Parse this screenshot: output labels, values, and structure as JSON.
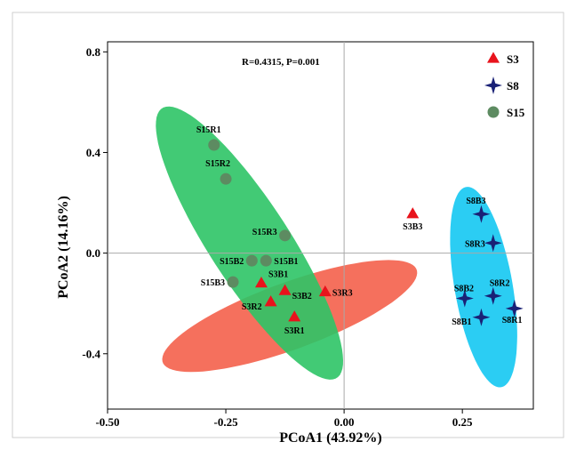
{
  "chart_data": {
    "type": "scatter",
    "title": "",
    "xlabel": "PCoA1 (43.92%)",
    "ylabel": "PCoA2 (14.16%)",
    "xlim": [
      -0.5,
      0.4
    ],
    "ylim": [
      -0.62,
      0.84
    ],
    "xticks": [
      -0.5,
      -0.25,
      0.0,
      0.25
    ],
    "xtick_labels": [
      "-0.50",
      "-0.25",
      "0.00",
      "0.25"
    ],
    "yticks": [
      -0.4,
      0.0,
      0.4,
      0.8
    ],
    "ytick_labels": [
      "-0.4",
      "0.0",
      "0.4",
      "0.8"
    ],
    "reference_lines": {
      "x": 0.0,
      "y": 0.0
    },
    "grid": false,
    "legend_position": "top-right",
    "annotation": "R=0.4315, P=0.001",
    "series": [
      {
        "name": "S3",
        "marker": "triangle",
        "color": "#e8131c",
        "ellipse_color": "#f4614b",
        "ellipse": {
          "center": [
            -0.115,
            -0.25
          ],
          "semi_major": 0.33,
          "semi_minor": 0.115,
          "angle_deg": 38
        },
        "points": [
          {
            "label": "S3B3",
            "x": 0.145,
            "y": 0.155
          },
          {
            "label": "S3B1",
            "x": -0.175,
            "y": -0.12
          },
          {
            "label": "S3B2",
            "x": -0.125,
            "y": -0.15
          },
          {
            "label": "S3R3",
            "x": -0.04,
            "y": -0.155
          },
          {
            "label": "S3R2",
            "x": -0.155,
            "y": -0.195
          },
          {
            "label": "S3R1",
            "x": -0.105,
            "y": -0.255
          }
        ]
      },
      {
        "name": "S8",
        "marker": "star4",
        "color": "#1a2176",
        "ellipse_color": "#14c8f2",
        "ellipse": {
          "center": [
            0.295,
            -0.135
          ],
          "semi_major": 0.4,
          "semi_minor": 0.062,
          "angle_deg": 95
        },
        "points": [
          {
            "label": "S8B3",
            "x": 0.29,
            "y": 0.155
          },
          {
            "label": "S8R3",
            "x": 0.315,
            "y": 0.04
          },
          {
            "label": "S8R2",
            "x": 0.315,
            "y": -0.17
          },
          {
            "label": "S8B2",
            "x": 0.255,
            "y": -0.18
          },
          {
            "label": "S8B1",
            "x": 0.29,
            "y": -0.255
          },
          {
            "label": "S8R1",
            "x": 0.36,
            "y": -0.22
          }
        ]
      },
      {
        "name": "S15",
        "marker": "circle",
        "color": "#5d8b61",
        "ellipse_color": "#2dc466",
        "ellipse": {
          "center": [
            -0.2,
            0.04
          ],
          "semi_major": 0.57,
          "semi_minor": 0.095,
          "angle_deg": 108
        },
        "points": [
          {
            "label": "S15R1",
            "x": -0.275,
            "y": 0.43
          },
          {
            "label": "S15R2",
            "x": -0.25,
            "y": 0.295
          },
          {
            "label": "S15R3",
            "x": -0.125,
            "y": 0.07
          },
          {
            "label": "S15B2",
            "x": -0.195,
            "y": -0.03
          },
          {
            "label": "S15B1",
            "x": -0.165,
            "y": -0.03
          },
          {
            "label": "S15B3",
            "x": -0.235,
            "y": -0.115
          }
        ]
      }
    ]
  }
}
